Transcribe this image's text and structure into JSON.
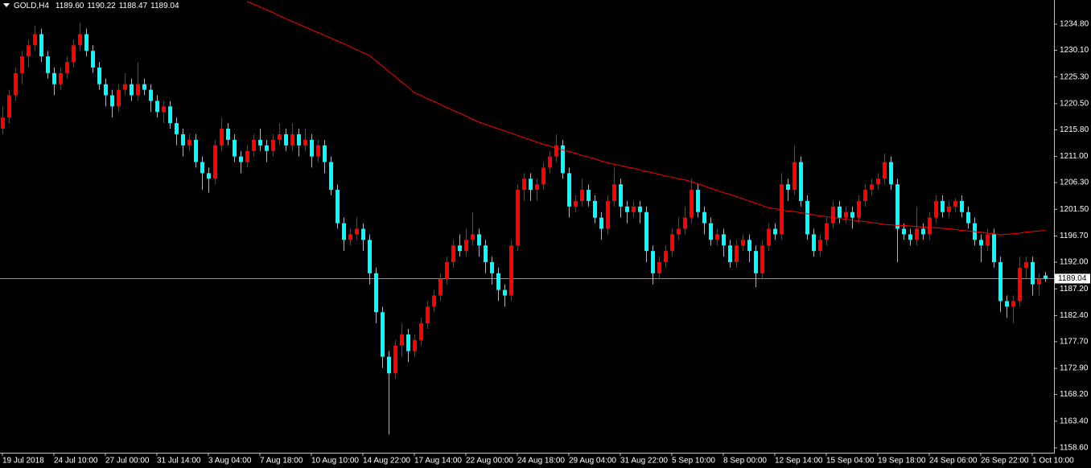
{
  "chart_data": {
    "type": "candlestick",
    "header": {
      "symbol": "GOLD,H4",
      "open": {
        "value": 1189.6,
        "label": "1189.60"
      },
      "high": 1190.22,
      "low": 1188.47
    },
    "last_price": 1189.04,
    "up_color": "#ff0000",
    "down_color": "#00ffff",
    "ma_color": "#ff0000",
    "price_line_color": "#c0c0c0",
    "ylim": [
      1157.73,
      1239.14
    ],
    "yticks": [
      {
        "value": 1234.8,
        "label": "1234.80"
      },
      {
        "value": 1230.1,
        "label": "1230.10"
      },
      {
        "value": 1225.3,
        "label": "1225.30"
      },
      {
        "value": 1220.5,
        "label": "1220.50"
      },
      {
        "value": 1215.8,
        "label": "1215.80"
      },
      {
        "value": 1211.0,
        "label": "1211.00"
      },
      {
        "value": 1206.3,
        "label": "1206.30"
      },
      {
        "value": 1201.5,
        "label": "1201.50"
      },
      {
        "value": 1196.7,
        "label": "1196.70"
      },
      {
        "value": 1192.0,
        "label": "1192.00"
      },
      {
        "value": 1187.2,
        "label": "1187.20"
      },
      {
        "value": 1182.4,
        "label": "1182.40"
      },
      {
        "value": 1177.7,
        "label": "1177.70"
      },
      {
        "value": 1172.9,
        "label": "1172.90"
      },
      {
        "value": 1168.2,
        "label": "1168.20"
      },
      {
        "value": 1163.4,
        "label": "1163.40"
      },
      {
        "value": 1158.6,
        "label": "1158.60"
      }
    ],
    "categories": [
      "19 Jul 2018",
      null,
      null,
      null,
      null,
      null,
      null,
      null,
      "24 Jul 10:00",
      null,
      null,
      null,
      null,
      null,
      null,
      null,
      "27 Jul 00:00",
      null,
      null,
      null,
      null,
      null,
      null,
      null,
      "31 Jul 14:00",
      null,
      null,
      null,
      null,
      null,
      null,
      null,
      "3 Aug 04:00",
      null,
      null,
      null,
      null,
      null,
      null,
      null,
      "7 Aug 18:00",
      null,
      null,
      null,
      null,
      null,
      null,
      null,
      "10 Aug 10:00",
      null,
      null,
      null,
      null,
      null,
      null,
      null,
      "14 Aug 22:00",
      null,
      null,
      null,
      null,
      null,
      null,
      null,
      "17 Aug 14:00",
      null,
      null,
      null,
      null,
      null,
      null,
      null,
      "22 Aug 00:00",
      null,
      null,
      null,
      null,
      null,
      null,
      null,
      "24 Aug 18:00",
      null,
      null,
      null,
      null,
      null,
      null,
      null,
      "29 Aug 04:00",
      null,
      null,
      null,
      null,
      null,
      null,
      null,
      "31 Aug 22:00",
      null,
      null,
      null,
      null,
      null,
      null,
      null,
      "5 Sep 10:00",
      null,
      null,
      null,
      null,
      null,
      null,
      null,
      "8 Sep 00:00",
      null,
      null,
      null,
      null,
      null,
      null,
      null,
      "12 Sep 14:00",
      null,
      null,
      null,
      null,
      null,
      null,
      null,
      "15 Sep 04:00",
      null,
      null,
      null,
      null,
      null,
      null,
      null,
      "19 Sep 18:00",
      null,
      null,
      null,
      null,
      null,
      null,
      null,
      "24 Sep 06:00",
      null,
      null,
      null,
      null,
      null,
      null,
      null,
      "26 Sep 22:00",
      null,
      null,
      null,
      null,
      null,
      null,
      null,
      "1 Oct 10:00",
      null,
      null
    ],
    "candles": [
      [
        1216,
        1220,
        1215,
        1218
      ],
      [
        1218,
        1223,
        1217,
        1222
      ],
      [
        1222,
        1227,
        1221,
        1226
      ],
      [
        1226,
        1230,
        1224,
        1229
      ],
      [
        1229,
        1232,
        1227,
        1231
      ],
      [
        1231,
        1234.5,
        1230,
        1233
      ],
      [
        1233,
        1234,
        1228,
        1229
      ],
      [
        1229,
        1230,
        1225,
        1226
      ],
      [
        1226,
        1227,
        1222,
        1224
      ],
      [
        1224,
        1227,
        1223,
        1226
      ],
      [
        1226,
        1229,
        1225,
        1228
      ],
      [
        1228,
        1232,
        1227,
        1231
      ],
      [
        1231,
        1235,
        1230,
        1233
      ],
      [
        1233,
        1234,
        1229,
        1230
      ],
      [
        1230,
        1231,
        1226,
        1227
      ],
      [
        1227,
        1228,
        1223,
        1224
      ],
      [
        1224,
        1225,
        1220,
        1222
      ],
      [
        1222,
        1223,
        1218,
        1220
      ],
      [
        1220,
        1224,
        1219,
        1223
      ],
      [
        1223,
        1226,
        1222,
        1224
      ],
      [
        1224,
        1225,
        1221,
        1222
      ],
      [
        1222,
        1228,
        1221,
        1224
      ],
      [
        1224,
        1225,
        1222,
        1223
      ],
      [
        1223,
        1224,
        1219,
        1221
      ],
      [
        1221,
        1222,
        1218,
        1219
      ],
      [
        1219,
        1221,
        1217,
        1220
      ],
      [
        1220,
        1221,
        1216,
        1217
      ],
      [
        1217,
        1218,
        1213,
        1215
      ],
      [
        1215,
        1216,
        1211,
        1213
      ],
      [
        1213,
        1215,
        1212,
        1214
      ],
      [
        1214,
        1215,
        1209,
        1210
      ],
      [
        1210,
        1211,
        1205,
        1208
      ],
      [
        1208,
        1209,
        1204.5,
        1207
      ],
      [
        1207,
        1214,
        1206,
        1213
      ],
      [
        1213,
        1218,
        1212,
        1216
      ],
      [
        1216,
        1217,
        1213,
        1214
      ],
      [
        1214,
        1215,
        1210,
        1211
      ],
      [
        1211,
        1212,
        1208,
        1210
      ],
      [
        1210,
        1213,
        1209,
        1212
      ],
      [
        1212,
        1215,
        1211,
        1214
      ],
      [
        1214,
        1216,
        1212,
        1213
      ],
      [
        1213,
        1214,
        1210,
        1212
      ],
      [
        1212,
        1215,
        1211,
        1214
      ],
      [
        1214,
        1217,
        1213,
        1215
      ],
      [
        1215,
        1216,
        1212,
        1213
      ],
      [
        1213,
        1217,
        1212,
        1215
      ],
      [
        1215,
        1216,
        1211,
        1213
      ],
      [
        1213,
        1216,
        1212,
        1214
      ],
      [
        1214,
        1215,
        1209,
        1211
      ],
      [
        1211,
        1214,
        1210,
        1213
      ],
      [
        1213,
        1214,
        1208,
        1210
      ],
      [
        1210,
        1211,
        1204,
        1205
      ],
      [
        1205,
        1206,
        1198,
        1199
      ],
      [
        1199,
        1200,
        1194,
        1196
      ],
      [
        1196,
        1198,
        1195,
        1197
      ],
      [
        1197,
        1200,
        1196,
        1198
      ],
      [
        1198,
        1199,
        1194,
        1196
      ],
      [
        1196,
        1197,
        1188,
        1190
      ],
      [
        1190,
        1191,
        1181,
        1183
      ],
      [
        1183,
        1184,
        1173,
        1175
      ],
      [
        1175,
        1176,
        1161,
        1172
      ],
      [
        1172,
        1178,
        1171,
        1177
      ],
      [
        1177,
        1181,
        1175,
        1179
      ],
      [
        1179,
        1180,
        1174,
        1176
      ],
      [
        1176,
        1179,
        1175,
        1178
      ],
      [
        1178,
        1182,
        1177,
        1181
      ],
      [
        1181,
        1185,
        1180,
        1184
      ],
      [
        1184,
        1187,
        1183,
        1186
      ],
      [
        1186,
        1190,
        1185,
        1189
      ],
      [
        1189,
        1193,
        1188,
        1192
      ],
      [
        1192,
        1196,
        1191,
        1195
      ],
      [
        1195,
        1197,
        1193,
        1194
      ],
      [
        1194,
        1198,
        1193,
        1196
      ],
      [
        1196,
        1201,
        1195,
        1197
      ],
      [
        1197,
        1198,
        1193,
        1195
      ],
      [
        1195,
        1196,
        1190,
        1192
      ],
      [
        1192,
        1193,
        1188,
        1190
      ],
      [
        1190,
        1191,
        1185,
        1187
      ],
      [
        1187,
        1188,
        1184,
        1186
      ],
      [
        1186,
        1196,
        1185,
        1195
      ],
      [
        1195,
        1206,
        1194,
        1205
      ],
      [
        1205,
        1208,
        1203,
        1207
      ],
      [
        1207,
        1208,
        1203,
        1205
      ],
      [
        1205,
        1207,
        1203,
        1206
      ],
      [
        1206,
        1210,
        1205,
        1209
      ],
      [
        1209,
        1212,
        1208,
        1211
      ],
      [
        1211,
        1215,
        1210,
        1213
      ],
      [
        1213,
        1214,
        1207,
        1208
      ],
      [
        1208,
        1209,
        1200,
        1202
      ],
      [
        1202,
        1204,
        1201,
        1203
      ],
      [
        1203,
        1207,
        1202,
        1205
      ],
      [
        1205,
        1206,
        1202,
        1203
      ],
      [
        1203,
        1204,
        1199,
        1200
      ],
      [
        1200,
        1201,
        1196,
        1198
      ],
      [
        1198,
        1204,
        1197,
        1203
      ],
      [
        1203,
        1209,
        1202,
        1206
      ],
      [
        1206,
        1207,
        1200,
        1202
      ],
      [
        1202,
        1203,
        1199,
        1201
      ],
      [
        1201,
        1203,
        1200,
        1202
      ],
      [
        1202,
        1203,
        1199,
        1201
      ],
      [
        1201,
        1202,
        1192,
        1194
      ],
      [
        1194,
        1195,
        1188,
        1190
      ],
      [
        1190,
        1193,
        1189,
        1192
      ],
      [
        1192,
        1195,
        1191,
        1194
      ],
      [
        1194,
        1198,
        1193,
        1197
      ],
      [
        1197,
        1200,
        1196,
        1198
      ],
      [
        1198,
        1202,
        1197,
        1200
      ],
      [
        1200,
        1207,
        1199,
        1205
      ],
      [
        1205,
        1206,
        1200,
        1201
      ],
      [
        1201,
        1202,
        1197,
        1199
      ],
      [
        1199,
        1200,
        1195,
        1196
      ],
      [
        1196,
        1198,
        1195,
        1197
      ],
      [
        1197,
        1198,
        1193,
        1195
      ],
      [
        1195,
        1196,
        1191,
        1192
      ],
      [
        1192,
        1196,
        1191,
        1195
      ],
      [
        1195,
        1197,
        1194,
        1196
      ],
      [
        1196,
        1197,
        1192,
        1194
      ],
      [
        1194,
        1195,
        1187.5,
        1190
      ],
      [
        1190,
        1196,
        1189,
        1195
      ],
      [
        1195,
        1199,
        1194,
        1198
      ],
      [
        1198,
        1199,
        1196,
        1197
      ],
      [
        1197,
        1208,
        1196,
        1206
      ],
      [
        1206,
        1207,
        1203,
        1205
      ],
      [
        1205,
        1213,
        1204,
        1210
      ],
      [
        1210,
        1211,
        1202,
        1203
      ],
      [
        1203,
        1204,
        1196,
        1197
      ],
      [
        1197,
        1198,
        1193,
        1194
      ],
      [
        1194,
        1197,
        1193,
        1196
      ],
      [
        1196,
        1200,
        1195,
        1199
      ],
      [
        1199,
        1203,
        1198,
        1202
      ],
      [
        1202,
        1203,
        1199,
        1200
      ],
      [
        1200,
        1202,
        1199,
        1201
      ],
      [
        1201,
        1202,
        1198,
        1200
      ],
      [
        1200,
        1204,
        1199,
        1203
      ],
      [
        1203,
        1206,
        1202,
        1205
      ],
      [
        1205,
        1207,
        1204,
        1206
      ],
      [
        1206,
        1208,
        1205,
        1207
      ],
      [
        1207,
        1211.5,
        1206,
        1210
      ],
      [
        1210,
        1211,
        1205,
        1206
      ],
      [
        1206,
        1207,
        1192,
        1198
      ],
      [
        1198,
        1199,
        1196,
        1197
      ],
      [
        1197,
        1198,
        1195,
        1196
      ],
      [
        1196,
        1202,
        1195,
        1198
      ],
      [
        1198,
        1199,
        1196,
        1197
      ],
      [
        1197,
        1201,
        1196,
        1200
      ],
      [
        1200,
        1204,
        1199,
        1203
      ],
      [
        1203,
        1204,
        1200,
        1201
      ],
      [
        1201,
        1203,
        1200,
        1202
      ],
      [
        1202,
        1203.5,
        1201,
        1203
      ],
      [
        1203,
        1204,
        1200,
        1201
      ],
      [
        1201,
        1202,
        1198,
        1199
      ],
      [
        1199,
        1200,
        1195,
        1196
      ],
      [
        1196,
        1197,
        1192,
        1195
      ],
      [
        1195,
        1198,
        1194,
        1197
      ],
      [
        1197,
        1198,
        1191,
        1192
      ],
      [
        1192,
        1193,
        1183,
        1185
      ],
      [
        1185,
        1186,
        1182,
        1184
      ],
      [
        1184,
        1186,
        1181,
        1185
      ],
      [
        1185,
        1193,
        1184,
        1191
      ],
      [
        1191,
        1193,
        1189,
        1192
      ],
      [
        1192,
        1193,
        1186,
        1188
      ],
      [
        1188,
        1190,
        1186,
        1189
      ],
      [
        1189.6,
        1190.22,
        1188.47,
        1189.04
      ]
    ],
    "ma_values": [
      null,
      null,
      null,
      null,
      null,
      null,
      null,
      null,
      null,
      null,
      null,
      null,
      null,
      null,
      null,
      null,
      null,
      null,
      null,
      null,
      null,
      null,
      null,
      null,
      null,
      null,
      null,
      null,
      null,
      null,
      null,
      null,
      null,
      null,
      null,
      null,
      null,
      null,
      1238.9,
      1238.4,
      1237.9,
      1237.4,
      1236.9,
      1236.3,
      1235.8,
      1235.3,
      1234.8,
      1234.3,
      1233.8,
      1233.3,
      1232.8,
      1232.3,
      1231.8,
      1231.3,
      1230.8,
      1230.2,
      1229.7,
      1229.2,
      1228.2,
      1227.3,
      1226.3,
      1225.4,
      1224.4,
      1223.5,
      1222.5,
      1222.0,
      1221.4,
      1220.9,
      1220.4,
      1219.8,
      1219.3,
      1218.8,
      1218.3,
      1217.7,
      1217.2,
      1216.8,
      1216.4,
      1216.0,
      1215.6,
      1215.2,
      1214.8,
      1214.4,
      1214.0,
      1213.6,
      1213.2,
      1212.9,
      1212.5,
      1212.2,
      1211.9,
      1211.6,
      1211.2,
      1210.9,
      1210.6,
      1210.2,
      1209.9,
      1209.6,
      1209.4,
      1209.1,
      1208.9,
      1208.6,
      1208.3,
      1208.1,
      1207.8,
      1207.5,
      1207.3,
      1207.0,
      1206.8,
      1206.5,
      1206.1,
      1205.7,
      1205.3,
      1204.9,
      1204.5,
      1204.2,
      1203.8,
      1203.4,
      1203.0,
      1202.6,
      1202.2,
      1201.8,
      1201.6,
      1201.4,
      1201.2,
      1201.1,
      1200.9,
      1200.7,
      1200.5,
      1200.3,
      1200.2,
      1200.0,
      1199.9,
      1199.7,
      1199.6,
      1199.4,
      1199.3,
      1199.1,
      1199.0,
      1198.8,
      1198.7,
      1198.6,
      1198.6,
      1198.5,
      1198.4,
      1198.3,
      1198.2,
      1198.2,
      1198.1,
      1198.0,
      1197.9,
      1197.7,
      1197.6,
      1197.5,
      1197.4,
      1197.2,
      1197.1,
      1196.9,
      1197.0,
      1197.1,
      1197.2,
      1197.4,
      1197.5,
      1197.6,
      1197.7
    ]
  }
}
